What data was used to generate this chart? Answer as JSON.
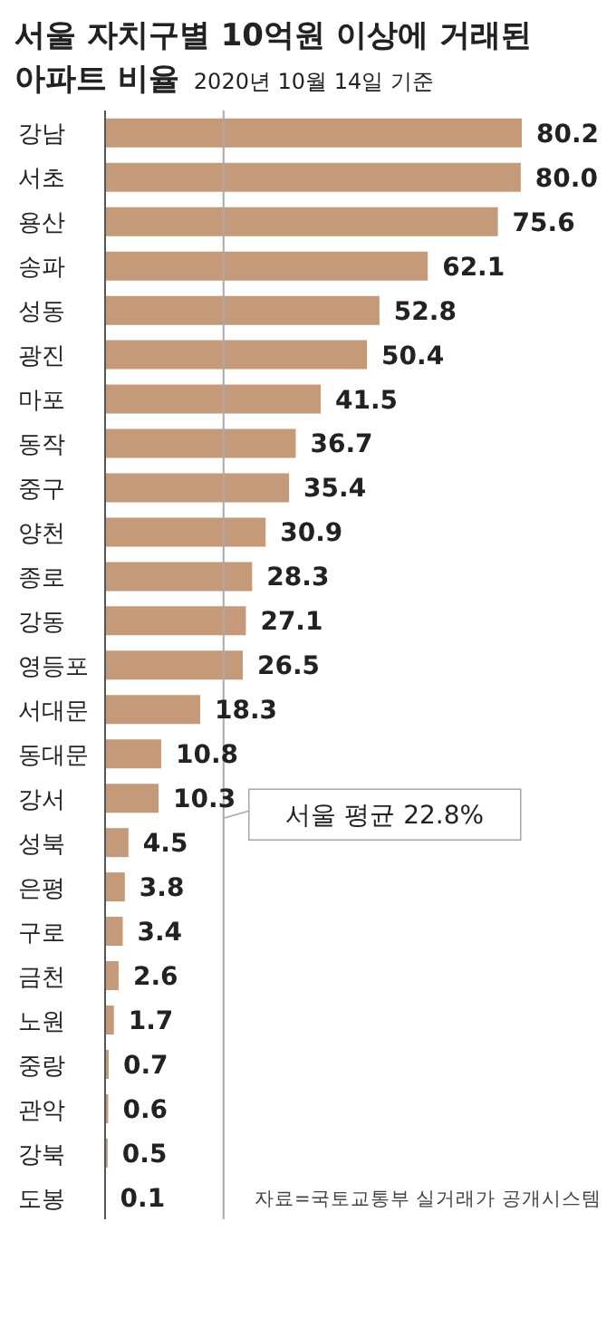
{
  "chart_data": {
    "type": "bar",
    "orientation": "horizontal",
    "title": "서울 자치구별 10억원 이상에 거래된 아파트 비율",
    "subtitle": "2020년 10월 14일 기준",
    "categories": [
      "강남",
      "서초",
      "용산",
      "송파",
      "성동",
      "광진",
      "마포",
      "동작",
      "중구",
      "양천",
      "종로",
      "강동",
      "영등포",
      "서대문",
      "동대문",
      "강서",
      "성북",
      "은평",
      "구로",
      "금천",
      "노원",
      "중랑",
      "관악",
      "강북",
      "도봉"
    ],
    "values": [
      80.2,
      80.0,
      75.6,
      62.1,
      52.8,
      50.4,
      41.5,
      36.7,
      35.4,
      30.9,
      28.3,
      27.1,
      26.5,
      18.3,
      10.8,
      10.3,
      4.5,
      3.8,
      3.4,
      2.6,
      1.7,
      0.7,
      0.6,
      0.5,
      0.1
    ],
    "value_labels": [
      "80.2",
      "80.0",
      "75.6",
      "62.1",
      "52.8",
      "50.4",
      "41.5",
      "36.7",
      "35.4",
      "30.9",
      "28.3",
      "27.1",
      "26.5",
      "18.3",
      "10.8",
      "10.3",
      "4.5",
      "3.8",
      "3.4",
      "2.6",
      "1.7",
      "0.7",
      "0.6",
      "0.5",
      "0.1"
    ],
    "color": "#c49a78",
    "ref_lines": [
      {
        "axis": "x",
        "value": 22.8,
        "label": "서울 평균 22.8%",
        "color": "#aaaaaa"
      }
    ],
    "annotations": [
      "자료=국토교통부 실거래가 공개시스템"
    ],
    "grid": false,
    "legend": false
  }
}
